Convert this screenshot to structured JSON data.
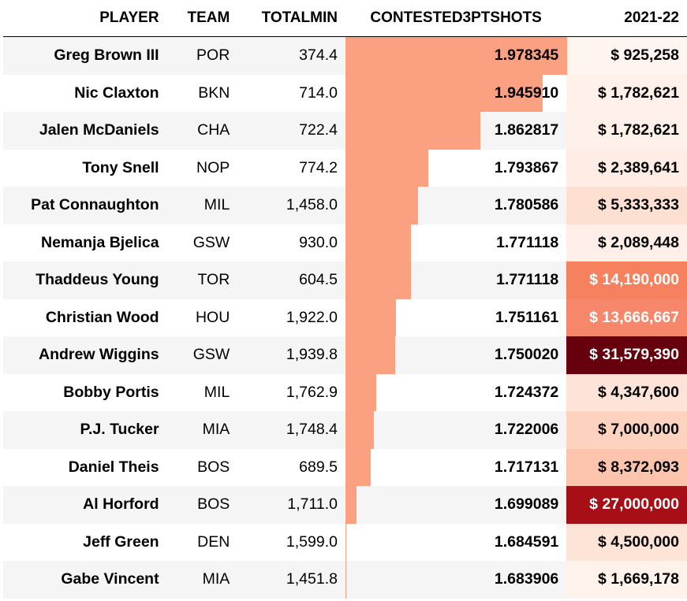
{
  "columns": {
    "player": "PLAYER",
    "team": "TEAM",
    "totalmin": "TOTALMIN",
    "contested": "CONTESTED3PTSHOTS",
    "salary": "2021-22"
  },
  "colors": {
    "bar": "#fca082",
    "row_alt": "#f5f5f5",
    "text_dark": "#000000",
    "text_light": "#ffffff"
  },
  "chart_data": {
    "type": "table",
    "bar_column": "CONTESTED3PTSHOTS",
    "bar_range": [
      1.683906,
      1.978345
    ],
    "rows": [
      {
        "player": "Greg Brown III",
        "team": "POR",
        "totalmin": "374.4",
        "contested": 1.978345,
        "contested_label": "1.978345",
        "salary": 925258,
        "salary_label": "$ 925,258",
        "salary_bg": "#fff5f0",
        "salary_fg": "#000000"
      },
      {
        "player": "Nic Claxton",
        "team": "BKN",
        "totalmin": "714.0",
        "contested": 1.94591,
        "contested_label": "1.945910",
        "salary": 1782621,
        "salary_label": "$ 1,782,621",
        "salary_bg": "#fff1ea",
        "salary_fg": "#000000"
      },
      {
        "player": "Jalen McDaniels",
        "team": "CHA",
        "totalmin": "722.4",
        "contested": 1.862817,
        "contested_label": "1.862817",
        "salary": 1782621,
        "salary_label": "$ 1,782,621",
        "salary_bg": "#fff1ea",
        "salary_fg": "#000000"
      },
      {
        "player": "Tony Snell",
        "team": "NOP",
        "totalmin": "774.2",
        "contested": 1.793867,
        "contested_label": "1.793867",
        "salary": 2389641,
        "salary_label": "$ 2,389,641",
        "salary_bg": "#ffede5",
        "salary_fg": "#000000"
      },
      {
        "player": "Pat Connaughton",
        "team": "MIL",
        "totalmin": "1,458.0",
        "contested": 1.780586,
        "contested_label": "1.780586",
        "salary": 5333333,
        "salary_label": "$ 5,333,333",
        "salary_bg": "#fee0d2",
        "salary_fg": "#000000"
      },
      {
        "player": "Nemanja Bjelica",
        "team": "GSW",
        "totalmin": "930.0",
        "contested": 1.771118,
        "contested_label": "1.771118",
        "salary": 2089448,
        "salary_label": "$ 2,089,448",
        "salary_bg": "#ffefe8",
        "salary_fg": "#000000"
      },
      {
        "player": "Thaddeus Young",
        "team": "TOR",
        "totalmin": "604.5",
        "contested": 1.771118,
        "contested_label": "1.771118",
        "salary": 14190000,
        "salary_label": "$ 14,190,000",
        "salary_bg": "#f6815f",
        "salary_fg": "#ffffff"
      },
      {
        "player": "Christian Wood",
        "team": "HOU",
        "totalmin": "1,922.0",
        "contested": 1.751161,
        "contested_label": "1.751161",
        "salary": 13666667,
        "salary_label": "$ 13,666,667",
        "salary_bg": "#f7876a",
        "salary_fg": "#ffffff"
      },
      {
        "player": "Andrew Wiggins",
        "team": "GSW",
        "totalmin": "1,939.8",
        "contested": 1.75002,
        "contested_label": "1.750020",
        "salary": 31579390,
        "salary_label": "$ 31,579,390",
        "salary_bg": "#67000d",
        "salary_fg": "#ffffff"
      },
      {
        "player": "Bobby Portis",
        "team": "MIL",
        "totalmin": "1,762.9",
        "contested": 1.724372,
        "contested_label": "1.724372",
        "salary": 4347600,
        "salary_label": "$ 4,347,600",
        "salary_bg": "#fee4d8",
        "salary_fg": "#000000"
      },
      {
        "player": "P.J. Tucker",
        "team": "MIA",
        "totalmin": "1,748.4",
        "contested": 1.722006,
        "contested_label": "1.722006",
        "salary": 7000000,
        "salary_label": "$ 7,000,000",
        "salary_bg": "#fdd2bf",
        "salary_fg": "#000000"
      },
      {
        "player": "Daniel Theis",
        "team": "BOS",
        "totalmin": "689.5",
        "contested": 1.717131,
        "contested_label": "1.717131",
        "salary": 8372093,
        "salary_label": "$ 8,372,093",
        "salary_bg": "#fcc4ad",
        "salary_fg": "#000000"
      },
      {
        "player": "Al Horford",
        "team": "BOS",
        "totalmin": "1,711.0",
        "contested": 1.699089,
        "contested_label": "1.699089",
        "salary": 27000000,
        "salary_label": "$ 27,000,000",
        "salary_bg": "#a50f15",
        "salary_fg": "#ffffff"
      },
      {
        "player": "Jeff Green",
        "team": "DEN",
        "totalmin": "1,599.0",
        "contested": 1.684591,
        "contested_label": "1.684591",
        "salary": 4500000,
        "salary_label": "$ 4,500,000",
        "salary_bg": "#fee3d7",
        "salary_fg": "#000000"
      },
      {
        "player": "Gabe Vincent",
        "team": "MIA",
        "totalmin": "1,451.8",
        "contested": 1.683906,
        "contested_label": "1.683906",
        "salary": 1669178,
        "salary_label": "$ 1,669,178",
        "salary_bg": "#fff2eb",
        "salary_fg": "#000000"
      }
    ]
  }
}
